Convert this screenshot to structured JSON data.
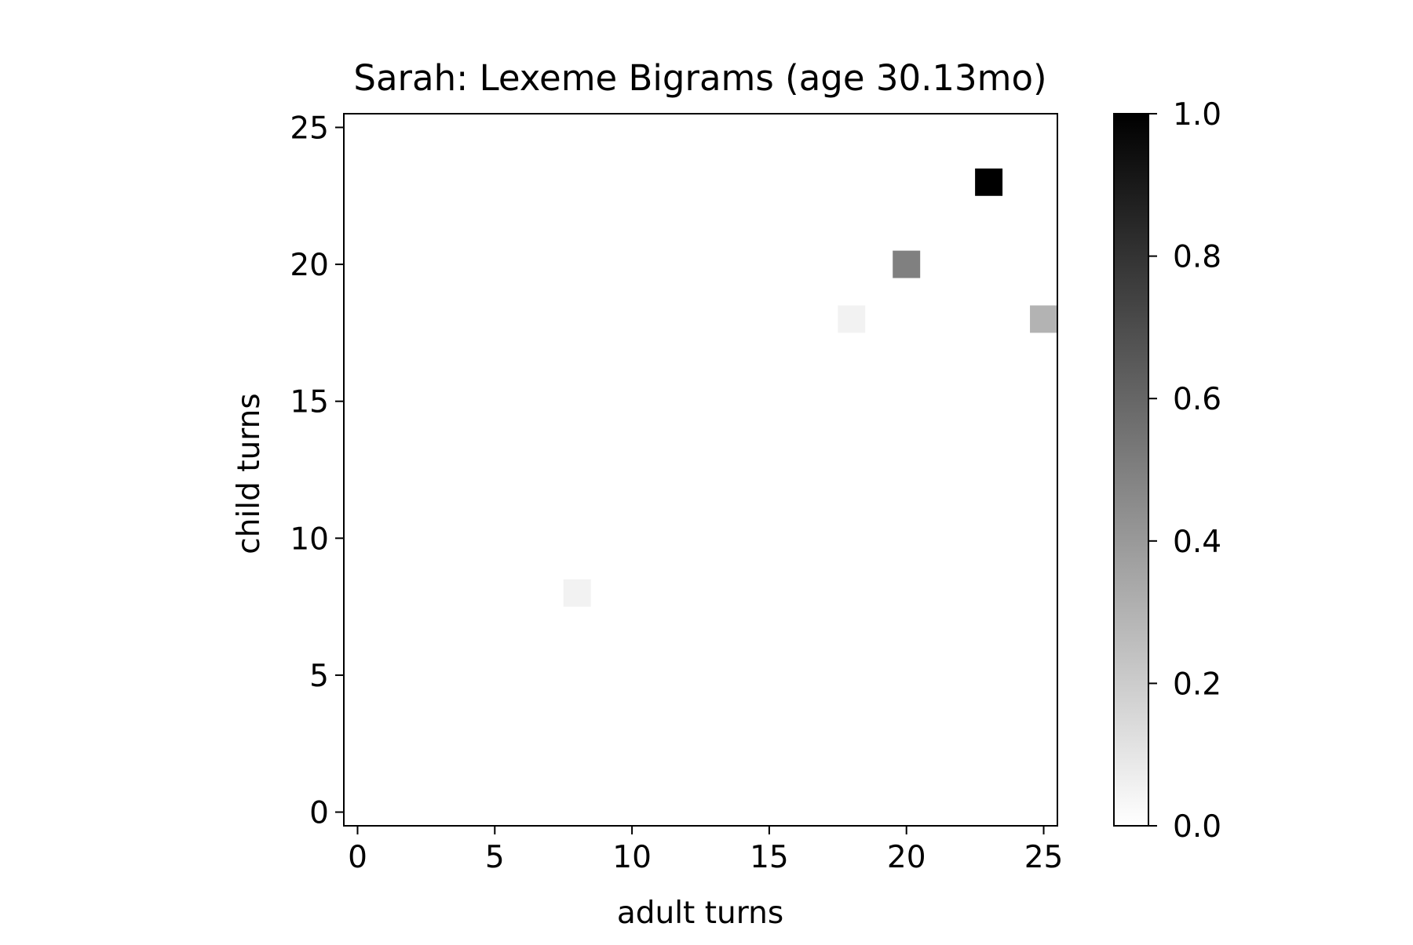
{
  "chart_data": {
    "type": "heatmap",
    "title": "Sarah: Lexeme Bigrams (age 30.13mo)",
    "xlabel": "adult turns",
    "ylabel": "child turns",
    "xlim": [
      -0.5,
      25.5
    ],
    "ylim": [
      -0.5,
      25.5
    ],
    "xticks": [
      0,
      5,
      10,
      15,
      20,
      25
    ],
    "yticks": [
      0,
      5,
      10,
      15,
      20,
      25
    ],
    "colormap": "Greys",
    "color_min": "#ffffff",
    "color_max": "#000000",
    "colorbar": {
      "range": [
        0.0,
        1.0
      ],
      "ticks": [
        "0.0",
        "0.2",
        "0.4",
        "0.6",
        "0.8",
        "1.0"
      ]
    },
    "cells": [
      {
        "x": 8,
        "y": 8,
        "value": 0.05
      },
      {
        "x": 18,
        "y": 18,
        "value": 0.05
      },
      {
        "x": 20,
        "y": 20,
        "value": 0.5
      },
      {
        "x": 23,
        "y": 23,
        "value": 1.0
      },
      {
        "x": 25,
        "y": 18,
        "value": 0.3
      }
    ],
    "grid": false
  }
}
